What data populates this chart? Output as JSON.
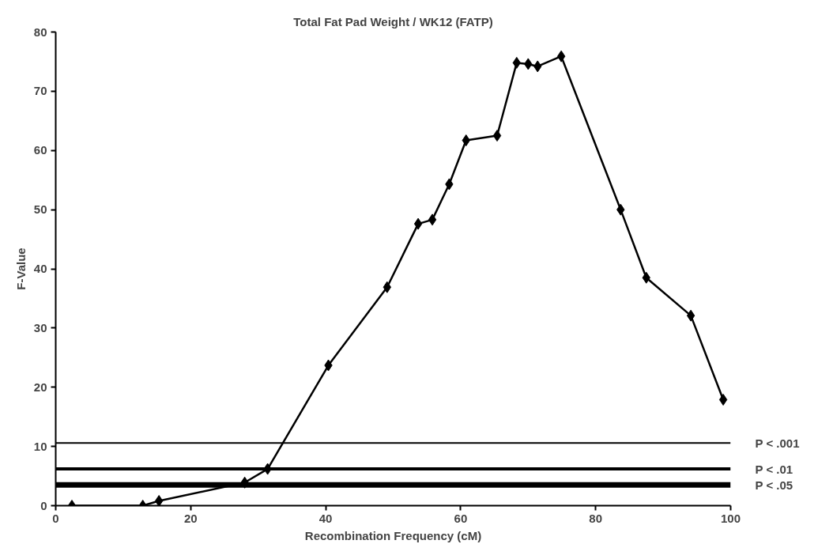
{
  "chart_data": {
    "type": "line",
    "title": "Total Fat Pad Weight / WK12 (FATP)",
    "xlabel": "Recombination Frequency (cM)",
    "ylabel": "F-Value",
    "x": [
      2.4,
      12.9,
      15.3,
      28.0,
      31.4,
      40.4,
      49.1,
      53.7,
      55.8,
      58.3,
      60.8,
      65.4,
      68.3,
      70.0,
      71.4,
      74.9,
      83.7,
      87.5,
      94.1,
      98.9
    ],
    "series": [
      {
        "color": "#000000",
        "values": [
          0,
          0,
          0.8,
          3.9,
          6.2,
          23.7,
          36.9,
          47.6,
          48.3,
          54.3,
          61.7,
          62.5,
          74.8,
          74.6,
          74.2,
          75.9,
          50.0,
          38.5,
          32.1,
          17.9
        ]
      }
    ],
    "xlim": [
      0,
      100
    ],
    "ylim": [
      0,
      80
    ],
    "xticks": [
      0,
      20,
      40,
      60,
      80,
      100
    ],
    "yticks": [
      0,
      10,
      20,
      30,
      40,
      50,
      60,
      70,
      80
    ],
    "ref_lines": [
      {
        "axis": "y",
        "value": 10.6,
        "label": "P < .001",
        "color": "#000000"
      },
      {
        "axis": "y",
        "value": 6.2,
        "label": "P < .01",
        "color": "#000000"
      },
      {
        "axis": "y",
        "value": 3.5,
        "label": "P < .05",
        "color": "#000000"
      }
    ],
    "marker": "diamond",
    "line_style": "solid",
    "grid": false
  }
}
